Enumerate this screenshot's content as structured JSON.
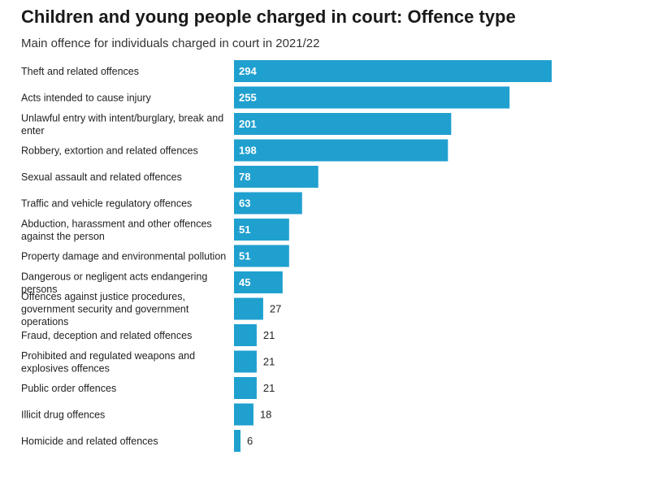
{
  "title": "Children and young people charged in court: Offence type",
  "subtitle": "Main offence for individuals charged in court in 2021/22",
  "colors": {
    "bar": "#1fa0cf"
  },
  "chart_data": {
    "type": "bar",
    "orientation": "horizontal",
    "categories": [
      "Theft and related offences",
      "Acts intended to cause injury",
      "Unlawful entry with intent/burglary, break and enter",
      "Robbery, extortion and related offences",
      "Sexual assault and related offences",
      "Traffic and vehicle regulatory offences",
      "Abduction, harassment and other offences against the person",
      "Property damage and environmental pollution",
      "Dangerous or negligent acts endangering persons",
      "Offences against justice procedures, government security and government operations",
      "Fraud, deception and related offences",
      "Prohibited and regulated weapons and explosives offences",
      "Public order offences",
      "Illicit drug offences",
      "Homicide and related offences"
    ],
    "values": [
      294,
      255,
      201,
      198,
      78,
      63,
      51,
      51,
      45,
      27,
      21,
      21,
      21,
      18,
      6
    ],
    "category_label_lines": [
      [
        "Theft and related offences"
      ],
      [
        "Acts intended to cause injury"
      ],
      [
        "Unlawful entry with intent/burglary, break and",
        "enter"
      ],
      [
        "Robbery, extortion and related offences"
      ],
      [
        "Sexual assault and related offences"
      ],
      [
        "Traffic and vehicle regulatory offences"
      ],
      [
        "Abduction, harassment and other offences",
        "against the person"
      ],
      [
        "Property damage and environmental pollution"
      ],
      [
        "Dangerous or negligent acts endangering",
        "persons"
      ],
      [
        "Offences against justice procedures,",
        "government security and government",
        "operations"
      ],
      [
        "Fraud, deception and related offences"
      ],
      [
        "Prohibited and regulated weapons and",
        "explosives offences"
      ],
      [
        "Public order offences"
      ],
      [
        "Illicit drug offences"
      ],
      [
        "Homicide and related offences"
      ]
    ],
    "data_labels": true,
    "grid": false,
    "legend": "none"
  }
}
